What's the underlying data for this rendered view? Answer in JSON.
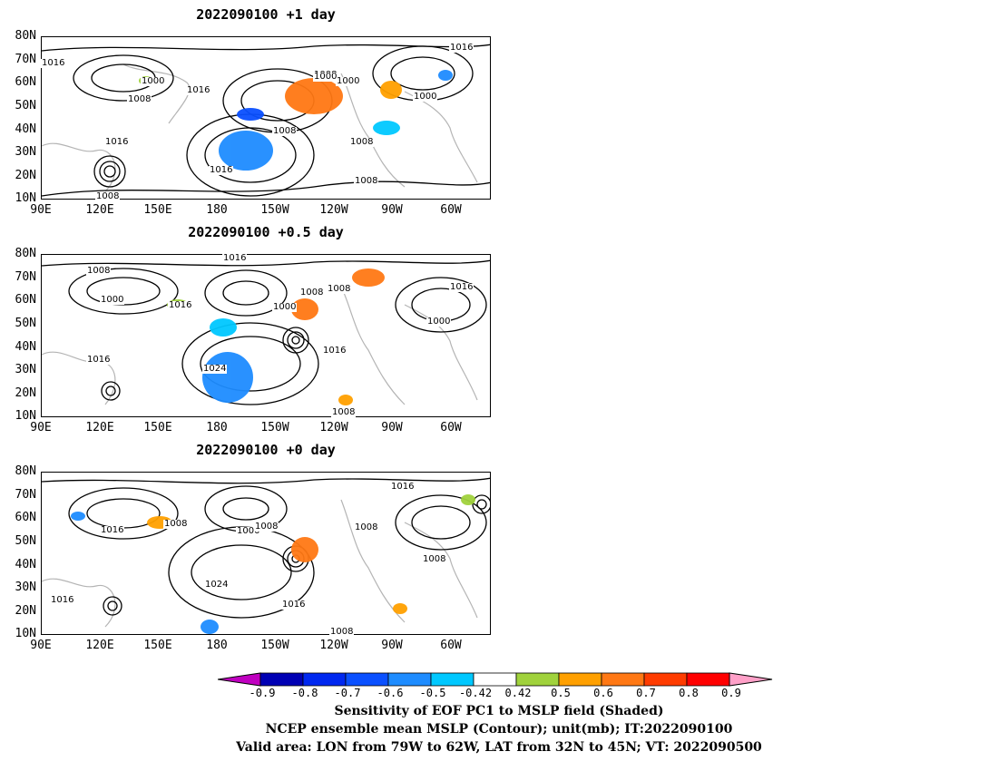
{
  "panels": [
    {
      "title": "2022090100  +1 day",
      "contour_labels": [
        "1016",
        "1016",
        "1000",
        "1008",
        "1016",
        "1000",
        "1008",
        "1008",
        "1000",
        "1016",
        "1016",
        "1008",
        "1008",
        "1008",
        "1000"
      ]
    },
    {
      "title": "2022090100  +0.5 day",
      "contour_labels": [
        "1016",
        "1008",
        "1000",
        "1016",
        "1008",
        "1008",
        "1000",
        "1016",
        "1000",
        "1016",
        "1024",
        "1016",
        "1008"
      ]
    },
    {
      "title": "2022090100  +0 day",
      "contour_labels": [
        "1016",
        "1016",
        "1008",
        "1000",
        "1008",
        "1008",
        "1024",
        "1016",
        "1016",
        "1008",
        "1008"
      ]
    }
  ],
  "lat_labels": [
    "80N",
    "70N",
    "60N",
    "50N",
    "40N",
    "30N",
    "20N",
    "10N"
  ],
  "lon_labels": [
    "90E",
    "120E",
    "150E",
    "180",
    "150W",
    "120W",
    "90W",
    "60W"
  ],
  "colorbar": {
    "ticks": [
      "-0.9",
      "-0.8",
      "-0.7",
      "-0.6",
      "-0.5",
      "-0.42",
      "0.42",
      "0.5",
      "0.6",
      "0.7",
      "0.8",
      "0.9"
    ],
    "colors": [
      "#c000c0",
      "#0000b4",
      "#0028f0",
      "#0a50ff",
      "#1e8cff",
      "#00c8ff",
      "#ffffff",
      "#a0d23c",
      "#ffa000",
      "#ff7814",
      "#ff3c00",
      "#ff0000",
      "#ffa0c8"
    ]
  },
  "captions": [
    "Sensitivity of EOF PC1 to MSLP field (Shaded)",
    "NCEP ensemble mean MSLP (Contour); unit(mb); IT:2022090100",
    "Valid area: LON from 79W to 62W, LAT from 32N to 45N; VT: 2022090500"
  ]
}
